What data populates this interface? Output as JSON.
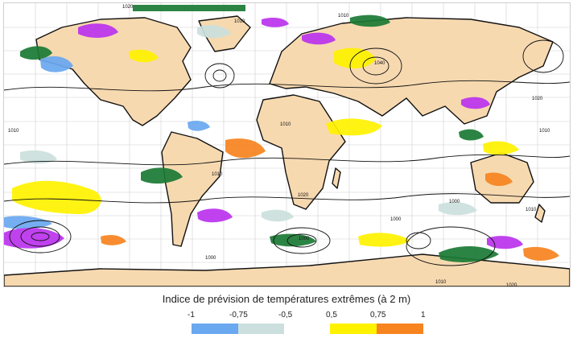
{
  "legend": {
    "title": "Indice de prévision de températures extrêmes (à 2 m)",
    "ticks": [
      "-1",
      "-0,75",
      "-0,5",
      "0,5",
      "0,75",
      "1"
    ],
    "colors": {
      "very_cold": "#6aa8f0",
      "cold": "#cbe0de",
      "warm": "#fff200",
      "very_warm": "#f7841f"
    }
  },
  "map": {
    "ocean_color": "#ffffff",
    "land_color": "#f7d9b0",
    "coast_color": "#111111",
    "isobar_color": "#111111",
    "extra_index_colors": {
      "wet_green": "#1b7a35",
      "violet": "#bb33ee"
    },
    "isobar_labels": [
      "1020",
      "1010",
      "1040",
      "1010",
      "1020",
      "1010",
      "1010",
      "1010",
      "1020",
      "1010",
      "1000",
      "1000",
      "1000",
      "1010",
      "1000",
      "1010",
      "1020"
    ]
  }
}
